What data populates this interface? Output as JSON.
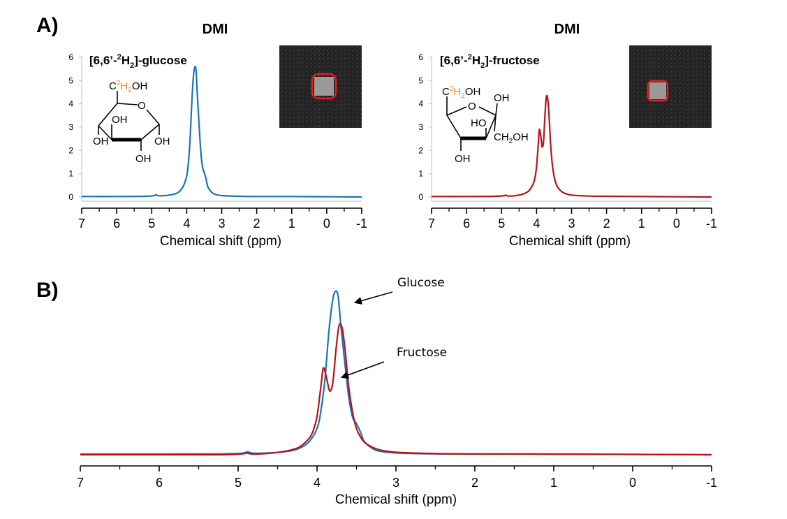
{
  "figure": {
    "panel_a_label": "A)",
    "panel_b_label": "B)"
  },
  "colors": {
    "glucose": "#1a73b8",
    "fructose": "#b5121b",
    "deuterium_label": "#e8892b",
    "roi": "#e52020"
  },
  "chart_data": [
    {
      "id": "glucose",
      "type": "line",
      "title": "DMI",
      "compound_prefix": "[6,6’-",
      "compound_iso": "2",
      "compound_el": "H",
      "compound_sub": "2",
      "compound_suffix": "]-glucose",
      "xlabel": "Chemical shift (ppm)",
      "ylabel": "",
      "xlim": [
        7,
        -1
      ],
      "ylim": [
        0,
        6
      ],
      "x_ticks": [
        "7",
        "6",
        "5",
        "4",
        "3",
        "2",
        "1",
        "0",
        "-1"
      ],
      "y_ticks": [
        "0",
        "1",
        "2",
        "3",
        "4",
        "5",
        "6"
      ],
      "series": [
        {
          "name": "[6,6’-2H2]-glucose",
          "color": "#1a73b8",
          "x": [
            7.0,
            6.0,
            5.2,
            4.95,
            4.88,
            4.8,
            4.5,
            4.3,
            4.2,
            4.1,
            4.0,
            3.95,
            3.9,
            3.85,
            3.8,
            3.76,
            3.73,
            3.7,
            3.65,
            3.6,
            3.55,
            3.5,
            3.45,
            3.4,
            3.3,
            3.2,
            3.0,
            2.5,
            2.0,
            1.0,
            0.0,
            -1.0
          ],
          "y": [
            0.02,
            0.02,
            0.03,
            0.05,
            0.1,
            0.05,
            0.08,
            0.15,
            0.25,
            0.45,
            0.9,
            1.5,
            2.6,
            4.2,
            5.3,
            5.6,
            5.4,
            4.5,
            3.2,
            2.0,
            1.3,
            1.05,
            0.8,
            0.45,
            0.22,
            0.12,
            0.06,
            0.03,
            0.02,
            0.02,
            0.01,
            0.0
          ]
        }
      ]
    },
    {
      "id": "fructose",
      "type": "line",
      "title": "DMI",
      "compound_prefix": "[6,6’-",
      "compound_iso": "2",
      "compound_el": "H",
      "compound_sub": "2",
      "compound_suffix": "]-fructose",
      "xlabel": "Chemical shift (ppm)",
      "ylabel": "",
      "xlim": [
        7,
        -1
      ],
      "ylim": [
        0,
        6
      ],
      "x_ticks": [
        "7",
        "6",
        "5",
        "4",
        "3",
        "2",
        "1",
        "0",
        "-1"
      ],
      "y_ticks": [
        "0",
        "1",
        "2",
        "3",
        "4",
        "5",
        "6"
      ],
      "series": [
        {
          "name": "[6,6’-2H2]-fructose",
          "color": "#b5121b",
          "x": [
            7.0,
            6.0,
            5.2,
            4.95,
            4.88,
            4.8,
            4.5,
            4.3,
            4.2,
            4.1,
            4.05,
            4.0,
            3.95,
            3.92,
            3.88,
            3.84,
            3.8,
            3.76,
            3.72,
            3.68,
            3.64,
            3.6,
            3.55,
            3.5,
            3.45,
            3.4,
            3.3,
            3.2,
            3.0,
            2.5,
            2.0,
            1.0,
            0.0,
            -1.0
          ],
          "y": [
            0.02,
            0.02,
            0.03,
            0.05,
            0.08,
            0.04,
            0.08,
            0.18,
            0.3,
            0.55,
            0.8,
            1.3,
            2.3,
            2.9,
            2.6,
            2.15,
            2.4,
            3.5,
            4.3,
            4.2,
            3.4,
            2.3,
            1.4,
            0.9,
            0.6,
            0.42,
            0.25,
            0.16,
            0.08,
            0.04,
            0.03,
            0.02,
            0.01,
            0.0
          ]
        }
      ]
    },
    {
      "id": "overlay",
      "type": "line",
      "title": "",
      "xlabel": "Chemical shift (ppm)",
      "ylabel": "",
      "xlim": [
        7,
        -1
      ],
      "ylim": [
        0,
        1.05
      ],
      "x_ticks": [
        "7",
        "6",
        "5",
        "4",
        "3",
        "2",
        "1",
        "0",
        "-1"
      ],
      "annotations": [
        "Glucose",
        "Fructose"
      ],
      "series": [
        {
          "name": "Glucose",
          "color": "#1a73b8",
          "x": [
            7.0,
            6.0,
            5.2,
            4.95,
            4.88,
            4.8,
            4.5,
            4.3,
            4.2,
            4.1,
            4.0,
            3.95,
            3.9,
            3.85,
            3.8,
            3.76,
            3.73,
            3.7,
            3.65,
            3.6,
            3.55,
            3.5,
            3.45,
            3.4,
            3.3,
            3.2,
            3.0,
            2.5,
            2.0,
            1.0,
            0.0,
            -1.0
          ],
          "y": [
            0.004,
            0.004,
            0.005,
            0.009,
            0.018,
            0.009,
            0.014,
            0.027,
            0.045,
            0.08,
            0.16,
            0.27,
            0.46,
            0.75,
            0.95,
            1.0,
            0.96,
            0.8,
            0.57,
            0.36,
            0.23,
            0.19,
            0.14,
            0.08,
            0.039,
            0.021,
            0.011,
            0.005,
            0.004,
            0.004,
            0.002,
            0.0
          ]
        },
        {
          "name": "Fructose",
          "color": "#b5121b",
          "x": [
            7.0,
            6.0,
            5.2,
            4.95,
            4.88,
            4.8,
            4.5,
            4.3,
            4.2,
            4.1,
            4.05,
            4.0,
            3.95,
            3.92,
            3.88,
            3.84,
            3.8,
            3.76,
            3.72,
            3.68,
            3.64,
            3.6,
            3.55,
            3.5,
            3.45,
            3.4,
            3.3,
            3.2,
            3.0,
            2.5,
            2.0,
            1.0,
            0.0,
            -1.0
          ],
          "y": [
            0.0,
            0.0,
            0.0,
            0.005,
            0.01,
            0.004,
            0.014,
            0.033,
            0.055,
            0.1,
            0.145,
            0.235,
            0.42,
            0.53,
            0.47,
            0.39,
            0.44,
            0.64,
            0.79,
            0.77,
            0.62,
            0.42,
            0.26,
            0.16,
            0.11,
            0.077,
            0.046,
            0.029,
            0.015,
            0.007,
            0.005,
            0.004,
            0.002,
            0.0
          ]
        }
      ]
    }
  ],
  "structures": {
    "glucose": {
      "ch2oh_c": "C",
      "ch2oh_iso": "2",
      "ch2oh_h": "H",
      "ch2oh_sub": "2",
      "ch2oh_oh": "OH",
      "ring_o": "O",
      "oh_labels": [
        "OH",
        "OH",
        "OH",
        "OH"
      ]
    },
    "fructose": {
      "ch2oh_c": "C",
      "ch2oh_iso": "2",
      "ch2oh_h": "H",
      "ch2oh_sub": "2",
      "ch2oh_oh": "OH",
      "ring_o": "O",
      "oh_top": "OH",
      "ho_mid": "HO",
      "ch2oh_side_pre": "CH",
      "ch2oh_side_sub": "2",
      "ch2oh_side_post": "OH",
      "oh_bottom": "OH"
    }
  }
}
